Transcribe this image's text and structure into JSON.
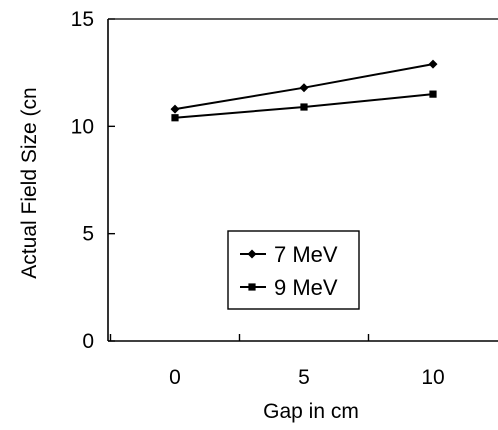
{
  "chart_data": {
    "type": "line",
    "title": "",
    "xlabel": "Gap in cm",
    "ylabel": "Actual Field Size (cn",
    "x_categories": [
      "0",
      "5",
      "10"
    ],
    "x_values": [
      0,
      5,
      10
    ],
    "y_ticks": [
      "0",
      "5",
      "10",
      "15"
    ],
    "y_tick_values": [
      0,
      5,
      10,
      15
    ],
    "ylim": [
      0,
      15
    ],
    "grid": false,
    "legend_position": "center",
    "series": [
      {
        "name": "7 MeV",
        "marker": "diamond",
        "color": "#000000",
        "values": [
          10.8,
          11.8,
          12.9
        ]
      },
      {
        "name": "9 MeV",
        "marker": "square",
        "color": "#000000",
        "values": [
          10.4,
          10.9,
          11.5
        ]
      }
    ]
  }
}
